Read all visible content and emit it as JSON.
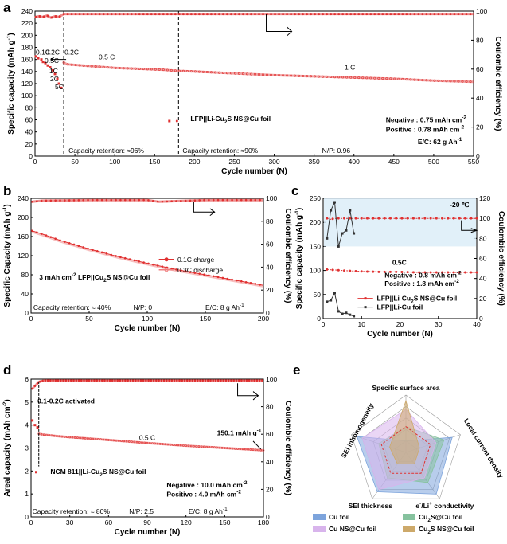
{
  "figure": {
    "panels": [
      "a",
      "b",
      "c",
      "d",
      "e"
    ],
    "units": {
      "sup_minus1": "-1",
      "sup_minus2": "-2",
      "sup_plus": "+",
      "sub_2": "2"
    }
  },
  "chart_data": [
    {
      "id": "a",
      "type": "scatter",
      "title": "",
      "xlabel": "Cycle number (N)",
      "ylabel": "Specific capacity (mAh g",
      "ylabel_sup": "-1",
      "ylabel_end": ")",
      "y2label": "Coulombic efficiency (%)",
      "xlim": [
        0,
        550
      ],
      "ylim": [
        0,
        240
      ],
      "y2lim": [
        0,
        100
      ],
      "xticks": [
        0,
        50,
        100,
        150,
        200,
        250,
        300,
        350,
        400,
        450,
        500,
        550
      ],
      "yticks": [
        0,
        20,
        40,
        60,
        80,
        100,
        120,
        140,
        160,
        180,
        200,
        220,
        240
      ],
      "y2ticks": [
        0,
        20,
        40,
        60,
        80,
        100
      ],
      "series": [
        {
          "name": "LFP||Li-Cu2S NS@Cu foil",
          "axis": "left",
          "color": "#e03030",
          "x": [
            1,
            4,
            8,
            10,
            13,
            16,
            19,
            22,
            25,
            28,
            30,
            33,
            36,
            40,
            60,
            80,
            100,
            120,
            140,
            160,
            180,
            200,
            250,
            300,
            350,
            400,
            450,
            500,
            550
          ],
          "y": [
            165,
            162,
            160,
            156,
            154,
            150,
            147,
            142,
            136,
            128,
            120,
            113,
            155,
            152,
            150,
            148,
            146,
            145,
            144,
            143,
            141,
            140,
            137,
            134,
            132,
            130,
            128,
            125,
            123
          ]
        },
        {
          "name": "Coulombic efficiency",
          "axis": "right",
          "color": "#e03030",
          "x": [
            1,
            5,
            10,
            15,
            20,
            25,
            30,
            36,
            50,
            100,
            150,
            180,
            200,
            250,
            300,
            350,
            400,
            450,
            500,
            550
          ],
          "y": [
            96,
            96.5,
            96,
            97,
            95.5,
            96.5,
            96,
            98,
            98,
            98,
            98,
            98,
            98,
            98,
            98,
            98,
            98,
            98,
            98,
            98
          ]
        }
      ],
      "rate_labels": [
        "0.1C",
        "0.2C",
        "0.5C",
        "1C",
        "2C",
        "5C",
        "0.2C"
      ],
      "section_labels": [
        "0.5 C",
        "1 C"
      ],
      "dividers_x": [
        36,
        180
      ],
      "annotations": {
        "retention_1": "Capacity retention: ≈96%",
        "retention_2": "Capacity retention: ≈90%",
        "np": "N/P: 0.96",
        "neg_prefix": "Negative : 0.75 mAh cm",
        "pos_prefix": "Positive : 0.78 mAh cm",
        "ec_prefix": "E/C: 62 g Ah"
      },
      "legend": {
        "text_a": "LFP||Li-Cu",
        "text_b": " NS@Cu foil",
        "sub": "2",
        "mid": "S"
      }
    },
    {
      "id": "b",
      "type": "line",
      "title": "",
      "xlabel": "Cycle number (N)",
      "ylabel": "Specific Capacity (mAh g",
      "ylabel_sup": "-1",
      "ylabel_end": ")",
      "y2label": "Coulombic efficiency (%)",
      "xlim": [
        0,
        200
      ],
      "ylim": [
        0,
        240
      ],
      "y2lim": [
        0,
        100
      ],
      "xticks": [
        0,
        50,
        100,
        150,
        200
      ],
      "yticks": [
        0,
        40,
        80,
        120,
        160,
        200,
        240
      ],
      "y2ticks": [
        0,
        20,
        40,
        60,
        80,
        100
      ],
      "series": [
        {
          "name": "0.1C charge",
          "axis": "left",
          "color": "#e03030",
          "x": [
            1,
            10,
            25,
            50,
            75,
            100,
            125,
            150,
            175,
            200
          ],
          "y": [
            172,
            165,
            152,
            134,
            118,
            104,
            91,
            80,
            69,
            58
          ]
        },
        {
          "name": "0.3C discharge",
          "axis": "left",
          "color": "#f08080",
          "x": [
            1,
            10,
            25,
            50,
            75,
            100,
            125,
            150,
            175,
            200
          ],
          "y": [
            170,
            163,
            150,
            132,
            116,
            102,
            89,
            78,
            67,
            56
          ]
        },
        {
          "name": "Coulombic efficiency",
          "axis": "right",
          "color": "#e03030",
          "x": [
            1,
            10,
            50,
            100,
            110,
            150,
            200
          ],
          "y": [
            97,
            98,
            98.5,
            98.5,
            97,
            98.5,
            98.5
          ]
        }
      ],
      "annotations": {
        "cell_a": "3 mAh cm",
        "cell_b": " LFP||Cu",
        "cell_c": "S NS@Cu foil",
        "retention": "Capacity retention: ≈ 40%",
        "np": "N/P: 0",
        "ec_prefix": "E/C: 8 g Ah"
      }
    },
    {
      "id": "c",
      "type": "line",
      "title": "",
      "xlabel": "Cycle number (N)",
      "ylabel": "Specific capacity (mAh g",
      "ylabel_sup": "-1",
      "ylabel_end": ")",
      "y2label": "Coulombic efficiency (%)",
      "xlim": [
        0,
        40
      ],
      "ylim": [
        0,
        250
      ],
      "y2lim": [
        0,
        120
      ],
      "xticks": [
        0,
        10,
        20,
        30,
        40
      ],
      "yticks": [
        0,
        50,
        100,
        150,
        200,
        250
      ],
      "y2ticks": [
        0,
        20,
        40,
        60,
        80,
        100,
        120
      ],
      "series": [
        {
          "name": "LFP||Li-Cu2S NS@Cu foil",
          "axis": "left",
          "color": "#e03030",
          "x": [
            1,
            5,
            10,
            15,
            20,
            25,
            30,
            35,
            40
          ],
          "y": [
            102,
            100,
            98,
            97,
            97,
            96,
            96,
            96,
            96
          ]
        },
        {
          "name": "LFP||Li-Cu foil",
          "axis": "left",
          "color": "#333333",
          "x": [
            1,
            2,
            3,
            4,
            5,
            6,
            7,
            8
          ],
          "y": [
            35,
            38,
            53,
            15,
            10,
            12,
            8,
            5
          ]
        },
        {
          "name": "CE Cu2S NS@Cu",
          "axis": "right",
          "color": "#e03030",
          "x": [
            1,
            2,
            3,
            5,
            10,
            15,
            20,
            25,
            30,
            35,
            40
          ],
          "y": [
            100,
            99,
            100,
            100,
            100,
            100,
            100,
            100,
            100,
            100,
            100
          ]
        },
        {
          "name": "CE Cu foil",
          "axis": "right",
          "color": "#333333",
          "x": [
            1,
            2,
            3,
            4,
            5,
            6,
            7,
            8
          ],
          "y": [
            80,
            108,
            116,
            72,
            85,
            88,
            108,
            85
          ]
        }
      ],
      "annotations": {
        "temp": "-20 ℃",
        "rate": "0.5C",
        "neg_prefix": "Negative : 0.8 mAh cm",
        "pos_prefix": "Positive : 1.8 mAh cm"
      },
      "legend": [
        {
          "a": "LFP||Li-Cu",
          "sub": "2",
          "b": "S NS@Cu foil"
        },
        {
          "a": "LFP||Li-Cu foil",
          "sub": "",
          "b": ""
        }
      ]
    },
    {
      "id": "d",
      "type": "scatter",
      "title": "",
      "xlabel": "Cycle number (N)",
      "ylabel": "Areal capacity (mAh cm",
      "ylabel_sup": "-2",
      "ylabel_end": ")",
      "y2label": "Coulombic efficiency (%)",
      "xlim": [
        0,
        180
      ],
      "ylim": [
        0,
        6
      ],
      "y2lim": [
        0,
        100
      ],
      "xticks": [
        0,
        30,
        60,
        90,
        120,
        150,
        180
      ],
      "yticks": [
        0,
        1,
        2,
        3,
        4,
        5,
        6
      ],
      "y2ticks": [
        0,
        20,
        40,
        60,
        80,
        100
      ],
      "series": [
        {
          "name": "NCM 811||Li-Cu2S NS@Cu foil",
          "axis": "left",
          "color": "#e03030",
          "x": [
            1,
            3,
            5,
            6,
            10,
            20,
            30,
            60,
            90,
            120,
            150,
            180
          ],
          "y": [
            4.2,
            4.0,
            3.9,
            3.62,
            3.58,
            3.52,
            3.47,
            3.35,
            3.22,
            3.1,
            3.0,
            2.9
          ]
        },
        {
          "name": "Coulombic efficiency",
          "axis": "right",
          "color": "#e03030",
          "x": [
            1,
            3,
            6,
            10,
            30,
            60,
            90,
            120,
            150,
            180
          ],
          "y": [
            93,
            95,
            98,
            99,
            99,
            99,
            99,
            99,
            99,
            99
          ]
        }
      ],
      "annotations": {
        "activated": "0.1-0.2C activated",
        "rate": "0.5 C",
        "final_prefix": "150.1 mAh g",
        "neg_prefix": "Negative : 10.0 mAh cm",
        "pos_prefix": "Positive : 4.0 mAh cm",
        "retention": "Capacity retention: ≈ 80%",
        "np": "N/P: 2.5",
        "ec_prefix": "E/C: 8 g Ah"
      },
      "legend": {
        "a": "NCM 811||Li-Cu",
        "sub": "2",
        "b": "S NS@Cu foil"
      }
    },
    {
      "id": "e",
      "type": "radar",
      "title": "",
      "axes": [
        "Specific surface area",
        "Local current density",
        "e-/Li+ conductivity",
        "SEI thickness",
        "SEI inhomogeneity"
      ],
      "levels": 5,
      "series": [
        {
          "name": "Cu foil",
          "color": "#7da4dc",
          "values": [
            0.2,
            0.85,
            0.9,
            0.85,
            0.9
          ]
        },
        {
          "name": "Cu2S@Cu foil",
          "color": "#86c29e",
          "values": [
            0.45,
            0.7,
            0.65,
            0.55,
            0.5
          ]
        },
        {
          "name": "Cu NS@Cu foil",
          "color": "#d8b4ec",
          "values": [
            0.75,
            0.55,
            0.55,
            0.8,
            0.8
          ]
        },
        {
          "name": "Cu2S NS@Cu foil",
          "color": "#cda96a",
          "values": [
            0.9,
            0.25,
            0.25,
            0.25,
            0.3
          ]
        }
      ],
      "legend": [
        {
          "a": "Cu foil",
          "sub": "",
          "b": ""
        },
        {
          "a": "Cu",
          "sub": "2",
          "b": "S@Cu foil"
        },
        {
          "a": "Cu NS@Cu foil",
          "sub": "",
          "b": ""
        },
        {
          "a": "Cu",
          "sub": "2",
          "b": "S NS@Cu foil"
        }
      ]
    }
  ]
}
